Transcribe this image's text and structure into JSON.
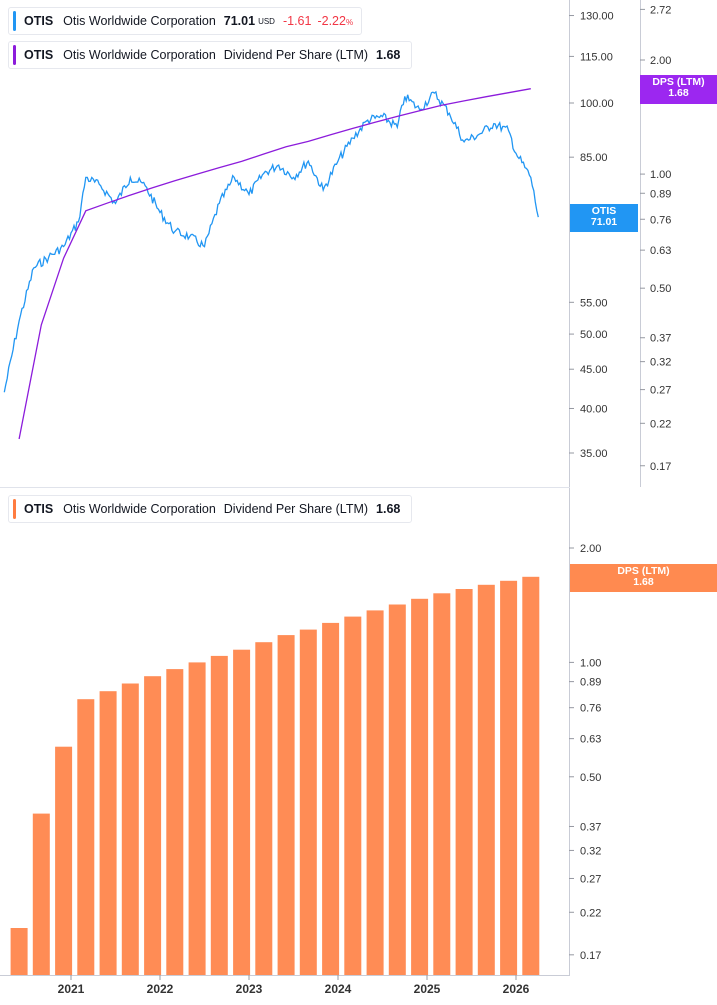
{
  "top_panel": {
    "legend_price": {
      "symbol": "OTIS",
      "name": "Otis Worldwide Corporation",
      "value": "71.01",
      "currency": "USD",
      "change": "-1.61",
      "change_pct": "-2.22",
      "pct_sign": "%",
      "color": "#2196f3"
    },
    "legend_dps": {
      "symbol": "OTIS",
      "name": "Otis Worldwide Corporation",
      "metric": "Dividend Per Share (LTM)",
      "value": "1.68",
      "color": "#8c1cdb"
    },
    "price_tag": {
      "line1": "OTIS",
      "line2": "71.01",
      "color": "#2196f3"
    },
    "dps_tag": {
      "line1": "DPS (LTM)",
      "line2": "1.68",
      "color": "#9c27f0"
    }
  },
  "bottom_panel": {
    "legend_dps": {
      "symbol": "OTIS",
      "name": "Otis Worldwide Corporation",
      "metric": "Dividend Per Share (LTM)",
      "value": "1.68",
      "color": "#ff7c40"
    },
    "dps_tag": {
      "line1": "DPS (LTM)",
      "line2": "1.68",
      "color": "#ff8a50"
    }
  },
  "chart_data": [
    {
      "type": "line",
      "title": "OTIS Otis Worldwide Corporation",
      "y_scale": "log",
      "price_axis_ticks": [
        "130.00",
        "115.00",
        "100.00",
        "85.00",
        "55.00",
        "50.00",
        "45.00",
        "40.00",
        "35.00"
      ],
      "dps_axis_ticks": [
        "2.72",
        "2.00",
        "1.00",
        "0.89",
        "0.76",
        "0.63",
        "0.50",
        "0.37",
        "0.32",
        "0.27",
        "0.22",
        "0.17"
      ],
      "x_tick_labels": [
        "2021",
        "2022",
        "2023",
        "2024",
        "2025",
        "2026"
      ],
      "series": [
        {
          "name": "OTIS",
          "color": "#2196f3",
          "x": [
            "2020-04",
            "2020-06",
            "2020-08",
            "2020-10",
            "2020-12",
            "2021-02",
            "2021-03",
            "2021-05",
            "2021-07",
            "2021-09",
            "2021-11",
            "2022-01",
            "2022-03",
            "2022-05",
            "2022-07",
            "2022-09",
            "2022-11",
            "2023-01",
            "2023-03",
            "2023-05",
            "2023-07",
            "2023-09",
            "2023-11",
            "2024-01",
            "2024-03",
            "2024-05",
            "2024-07",
            "2024-09",
            "2024-10",
            "2024-12",
            "2025-02",
            "2025-04",
            "2025-06",
            "2025-08",
            "2025-10",
            "2025-12",
            "2026-01",
            "2026-03",
            "2026-04"
          ],
          "values": [
            42,
            52,
            61,
            63,
            65,
            70,
            80,
            78,
            74,
            80,
            78,
            72,
            68,
            67,
            65,
            74,
            80,
            76,
            81,
            83,
            80,
            84,
            77,
            84,
            90,
            95,
            96,
            93,
            102,
            98,
            103,
            97,
            89,
            91,
            94,
            92,
            86,
            80,
            71.01
          ]
        },
        {
          "name": "Dividend Per Share (LTM)",
          "color": "#8c1cdb",
          "x": [
            "2020-06",
            "2020-09",
            "2020-12",
            "2021-03",
            "2021-06",
            "2021-09",
            "2021-12",
            "2022-03",
            "2022-06",
            "2022-09",
            "2022-12",
            "2023-03",
            "2023-06",
            "2023-09",
            "2023-12",
            "2024-03",
            "2024-06",
            "2024-09",
            "2024-12",
            "2025-03",
            "2025-06",
            "2025-09",
            "2025-12",
            "2026-03"
          ],
          "values": [
            0.2,
            0.4,
            0.6,
            0.8,
            0.84,
            0.88,
            0.92,
            0.96,
            1.0,
            1.04,
            1.08,
            1.13,
            1.18,
            1.22,
            1.27,
            1.32,
            1.37,
            1.42,
            1.47,
            1.52,
            1.56,
            1.6,
            1.64,
            1.68
          ]
        }
      ]
    },
    {
      "type": "bar",
      "title": "OTIS Otis Worldwide Corporation Dividend Per Share (LTM)",
      "y_scale": "log",
      "axis_ticks": [
        "2.00",
        "1.00",
        "0.89",
        "0.76",
        "0.63",
        "0.50",
        "0.37",
        "0.32",
        "0.27",
        "0.22",
        "0.17"
      ],
      "x_tick_labels": [
        "2021",
        "2022",
        "2023",
        "2024",
        "2025",
        "2026"
      ],
      "categories": [
        "2020-06",
        "2020-09",
        "2020-12",
        "2021-03",
        "2021-06",
        "2021-09",
        "2021-12",
        "2022-03",
        "2022-06",
        "2022-09",
        "2022-12",
        "2023-03",
        "2023-06",
        "2023-09",
        "2023-12",
        "2024-03",
        "2024-06",
        "2024-09",
        "2024-12",
        "2025-03",
        "2025-06",
        "2025-09",
        "2025-12",
        "2026-03"
      ],
      "series": [
        {
          "name": "Dividend Per Share (LTM)",
          "color": "#ff8c55",
          "values": [
            0.2,
            0.4,
            0.6,
            0.8,
            0.84,
            0.88,
            0.92,
            0.96,
            1.0,
            1.04,
            1.08,
            1.13,
            1.18,
            1.22,
            1.27,
            1.32,
            1.37,
            1.42,
            1.47,
            1.52,
            1.56,
            1.6,
            1.64,
            1.68
          ]
        }
      ]
    }
  ]
}
